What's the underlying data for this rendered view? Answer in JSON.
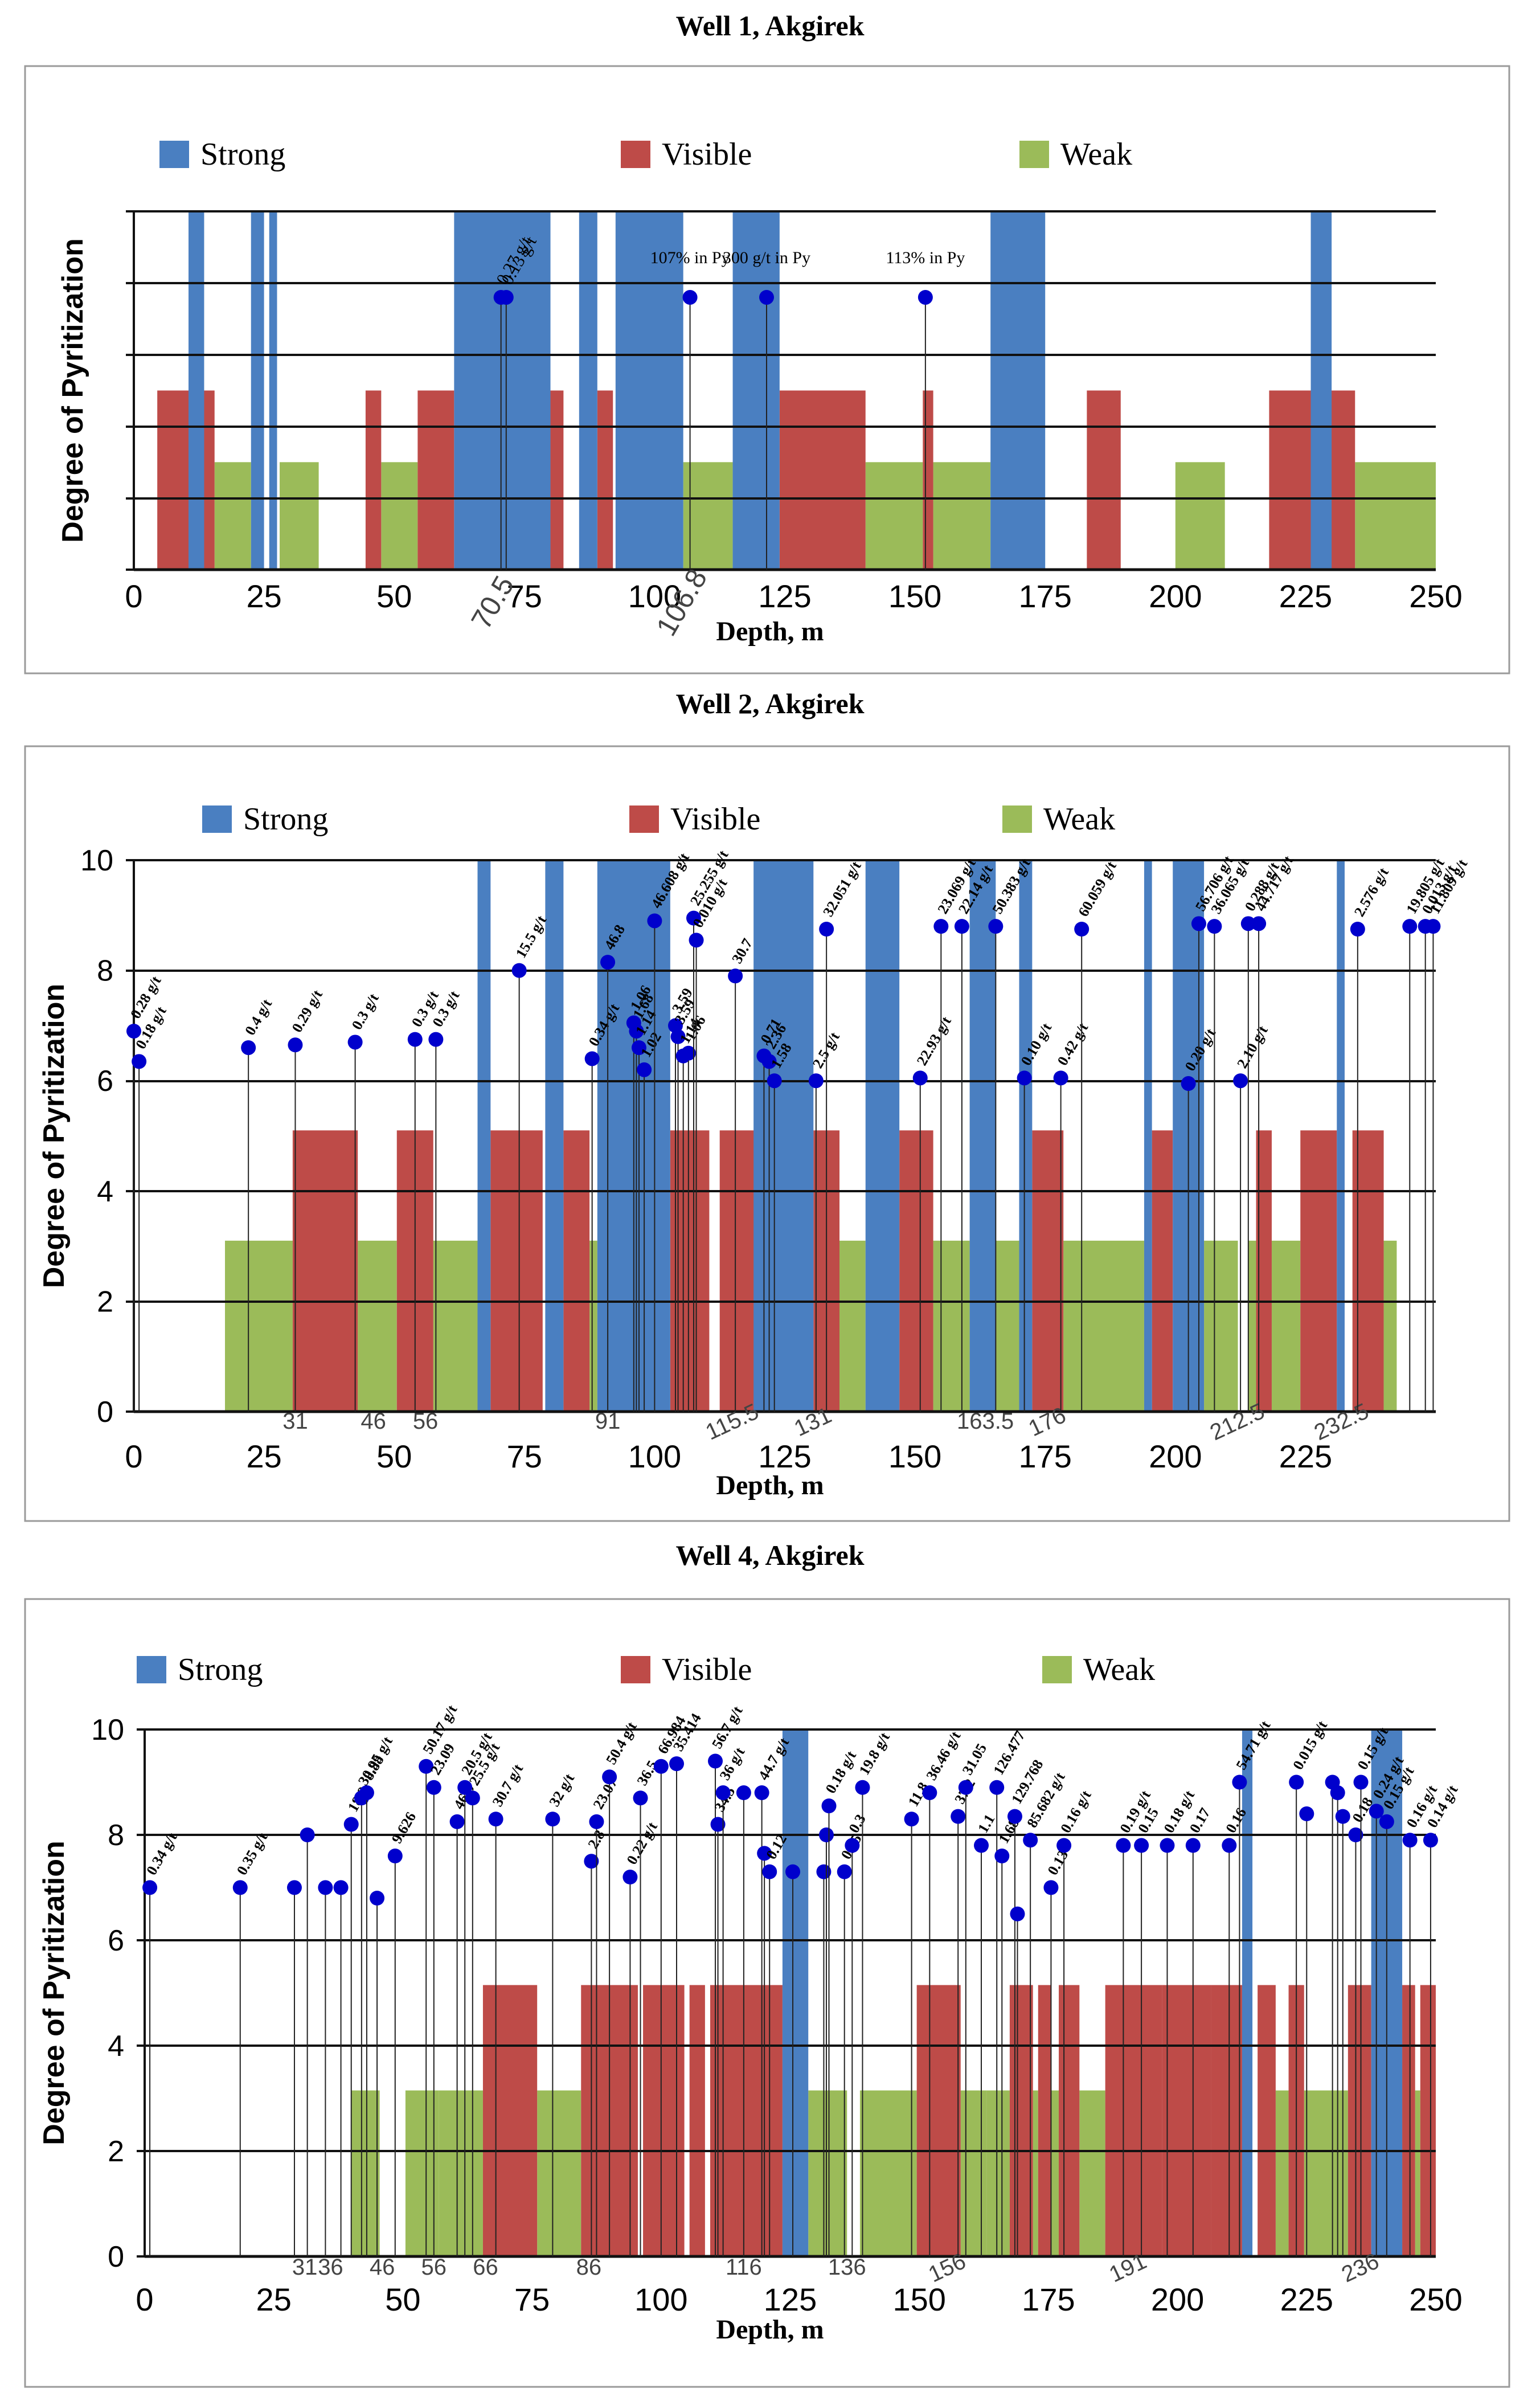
{
  "colors": {
    "strong": "#4a7fc1",
    "visible": "#be4b48",
    "weak": "#9bbb59",
    "marker": "#0000cc",
    "grid": "#000000"
  },
  "legend": {
    "strong": "Strong",
    "visible": "Visible",
    "weak": "Weak"
  },
  "chart_data": [
    {
      "type": "bar",
      "title": "Well 1, Akgirek",
      "xlabel": "Depth, m",
      "ylabel": "Degree of Pyritization",
      "xlim": [
        0,
        250
      ],
      "ylim": [
        0,
        10
      ],
      "xticks": [
        "0",
        "25",
        "50",
        "75",
        "100",
        "125",
        "150",
        "175",
        "200",
        "225",
        "250"
      ],
      "yticks": [],
      "grid": "horizontal",
      "special_ticks": [
        "70.5",
        "106.8"
      ],
      "strong": [
        [
          10.5,
          13.5
        ],
        [
          22.5,
          25
        ],
        [
          26,
          27.5
        ],
        [
          61.5,
          80
        ],
        [
          85.5,
          89
        ],
        [
          92.5,
          105.5
        ],
        [
          115,
          124
        ],
        [
          164.5,
          175
        ],
        [
          226,
          230
        ]
      ],
      "visible": [
        [
          4.5,
          15.5
        ],
        [
          44.5,
          47.5
        ],
        [
          54.5,
          61.5
        ],
        [
          80,
          82.5
        ],
        [
          89,
          92
        ],
        [
          124,
          140.5
        ],
        [
          151.5,
          153.5
        ],
        [
          183,
          189.5
        ],
        [
          218,
          234.5
        ]
      ],
      "weak": [
        [
          15.5,
          22.5
        ],
        [
          28,
          35.5
        ],
        [
          47.5,
          54.5
        ],
        [
          105.5,
          115
        ],
        [
          140.5,
          151.5
        ],
        [
          153.5,
          164.5
        ],
        [
          200,
          209.5
        ],
        [
          234.5,
          250
        ]
      ],
      "levels": {
        "strong": 10,
        "visible": 5,
        "weak": 3
      },
      "samples": [
        {
          "x": 70.5,
          "y": 7.6,
          "label": "0.27 g/t"
        },
        {
          "x": 71.5,
          "y": 7.6,
          "label": "0.13 g/t"
        },
        {
          "x": 106.8,
          "y": 7.6,
          "label": "107% in Py"
        },
        {
          "x": 121.5,
          "y": 7.6,
          "label": "300 g/t in Py"
        },
        {
          "x": 152,
          "y": 7.6,
          "label": "113% in Py"
        }
      ]
    },
    {
      "type": "bar",
      "title": "Well 2, Akgirek",
      "xlabel": "Depth, m",
      "ylabel": "Degree of Pyritization",
      "xlim": [
        0,
        250
      ],
      "ylim": [
        0,
        10
      ],
      "xticks": [
        "0",
        "25",
        "50",
        "75",
        "100",
        "125",
        "150",
        "175",
        "200",
        "225"
      ],
      "yticks": [
        "0",
        "2",
        "4",
        "6",
        "8",
        "10"
      ],
      "grid": "horizontal",
      "special_ticks": [
        "31",
        "46",
        "56",
        "91",
        "115.5",
        "131",
        "163.5",
        "176",
        "212.5",
        "232.5"
      ],
      "strong": [
        [
          66,
          68.5
        ],
        [
          79,
          82.5
        ],
        [
          89,
          103
        ],
        [
          119,
          130.5
        ],
        [
          140.5,
          147
        ],
        [
          160.5,
          165.5
        ],
        [
          170,
          172.5
        ],
        [
          194,
          195.5
        ],
        [
          199.5,
          205.5
        ],
        [
          231,
          232.5
        ]
      ],
      "visible": [
        [
          30.5,
          43
        ],
        [
          50.5,
          57.5
        ],
        [
          68.5,
          78.5
        ],
        [
          82.5,
          87.5
        ],
        [
          103,
          110.5
        ],
        [
          112.5,
          119.5
        ],
        [
          130.5,
          135.5
        ],
        [
          147,
          153.5
        ],
        [
          172.5,
          178.5
        ],
        [
          195.5,
          199.5
        ],
        [
          215.5,
          218.5
        ],
        [
          224,
          231
        ],
        [
          234,
          240
        ]
      ],
      "weak": [
        [
          17.5,
          30.5
        ],
        [
          43,
          50.5
        ],
        [
          57.5,
          66
        ],
        [
          87.5,
          89
        ],
        [
          135.5,
          140.5
        ],
        [
          153.5,
          160.5
        ],
        [
          165.5,
          170
        ],
        [
          178.5,
          194
        ],
        [
          205.5,
          212
        ],
        [
          214,
          215.5
        ],
        [
          218.5,
          224
        ],
        [
          240,
          242.5
        ]
      ],
      "levels": {
        "strong": 10,
        "visible": 5.1,
        "weak": 3.1
      },
      "samples": [
        {
          "x": 0,
          "y": 6.9,
          "label": "0.28 g/t"
        },
        {
          "x": 1,
          "y": 6.35,
          "label": "0.18 g/t"
        },
        {
          "x": 22,
          "y": 6.6,
          "label": "0.4 g/t"
        },
        {
          "x": 31,
          "y": 6.65,
          "label": "0.29 g/t"
        },
        {
          "x": 42.5,
          "y": 6.7,
          "label": "0.3 g/t"
        },
        {
          "x": 54,
          "y": 6.75,
          "label": "0.3 g/t"
        },
        {
          "x": 58,
          "y": 6.75,
          "label": "0.3 g/t"
        },
        {
          "x": 74,
          "y": 8,
          "label": "15.5 g/t"
        },
        {
          "x": 88,
          "y": 6.4,
          "label": "0.34 g/t"
        },
        {
          "x": 91,
          "y": 8.15,
          "label": "46.8"
        },
        {
          "x": 96,
          "y": 7.05,
          "label": "1.06"
        },
        {
          "x": 96.5,
          "y": 6.9,
          "label": "1.68"
        },
        {
          "x": 97,
          "y": 6.6,
          "label": "1.14"
        },
        {
          "x": 98,
          "y": 6.2,
          "label": "1.02"
        },
        {
          "x": 100,
          "y": 8.9,
          "label": "46.608 g/t"
        },
        {
          "x": 104,
          "y": 7,
          "label": "3.59"
        },
        {
          "x": 104.5,
          "y": 6.8,
          "label": "3.59"
        },
        {
          "x": 105.5,
          "y": 6.45,
          "label": "1.14"
        },
        {
          "x": 106.5,
          "y": 6.5,
          "label": "1.06"
        },
        {
          "x": 107.5,
          "y": 8.95,
          "label": "25.255 g/t"
        },
        {
          "x": 108,
          "y": 8.55,
          "label": "0.010 g/t"
        },
        {
          "x": 115.5,
          "y": 7.9,
          "label": "30.7"
        },
        {
          "x": 121,
          "y": 6.45,
          "label": "0.71"
        },
        {
          "x": 122,
          "y": 6.35,
          "label": "2.36"
        },
        {
          "x": 123,
          "y": 6,
          "label": "1.58"
        },
        {
          "x": 131,
          "y": 6,
          "label": "2.5 g/t"
        },
        {
          "x": 133,
          "y": 8.75,
          "label": "32.051 g/t"
        },
        {
          "x": 151,
          "y": 6.05,
          "label": "22.93 g/t"
        },
        {
          "x": 155,
          "y": 8.8,
          "label": "23.069 g/t"
        },
        {
          "x": 159,
          "y": 8.8,
          "label": "22.14 g/t"
        },
        {
          "x": 165.5,
          "y": 8.8,
          "label": "50.383 g/t"
        },
        {
          "x": 171,
          "y": 6.05,
          "label": "0.10 g/t"
        },
        {
          "x": 178,
          "y": 6.05,
          "label": "0.42 g/t"
        },
        {
          "x": 182,
          "y": 8.75,
          "label": "60.059 g/t"
        },
        {
          "x": 202.5,
          "y": 5.95,
          "label": "0.20 g/t"
        },
        {
          "x": 204.5,
          "y": 8.85,
          "label": "56.706 g/t"
        },
        {
          "x": 207.5,
          "y": 8.8,
          "label": "36.065 g/t"
        },
        {
          "x": 212.5,
          "y": 6,
          "label": "2.10 g/t"
        },
        {
          "x": 214,
          "y": 8.85,
          "label": "0.288 g/t"
        },
        {
          "x": 216,
          "y": 8.85,
          "label": "44.717 g/t"
        },
        {
          "x": 235,
          "y": 8.75,
          "label": "2.576 g/t"
        },
        {
          "x": 245,
          "y": 8.8,
          "label": "19.805 g/t"
        },
        {
          "x": 248,
          "y": 8.8,
          "label": "0.013 g/t"
        },
        {
          "x": 249.5,
          "y": 8.8,
          "label": "11.809 g/t"
        }
      ]
    },
    {
      "type": "bar",
      "title": "Well 4, Akgirek",
      "xlabel": "Depth, m",
      "ylabel": "Degree of Pyritization",
      "xlim": [
        0,
        250
      ],
      "ylim": [
        0,
        10
      ],
      "xticks": [
        "0",
        "25",
        "50",
        "75",
        "100",
        "125",
        "150",
        "175",
        "200",
        "225",
        "250"
      ],
      "yticks": [
        "0",
        "2",
        "4",
        "6",
        "8",
        "10"
      ],
      "grid": "horizontal",
      "special_ticks": [
        "31",
        "36",
        "46",
        "56",
        "66",
        "86",
        "116",
        "136",
        "156",
        "191",
        "236"
      ],
      "strong": [
        [
          123.5,
          128.5
        ],
        [
          212.5,
          214.5
        ],
        [
          237.5,
          243.5
        ]
      ],
      "visible": [
        [
          65.5,
          76
        ],
        [
          84.5,
          95.5
        ],
        [
          96.5,
          104.5
        ],
        [
          105.5,
          108.5
        ],
        [
          109.5,
          123.5
        ],
        [
          149.5,
          158
        ],
        [
          167.5,
          172
        ],
        [
          173,
          175.5
        ],
        [
          177,
          181
        ],
        [
          186,
          197
        ],
        [
          197,
          206.5
        ],
        [
          206.5,
          212.5
        ],
        [
          215.5,
          219
        ],
        [
          221.5,
          224.5
        ],
        [
          233,
          237.5
        ],
        [
          243.5,
          246
        ],
        [
          247,
          250
        ]
      ],
      "weak": [
        [
          40,
          45.5
        ],
        [
          50.5,
          57
        ],
        [
          57,
          65.5
        ],
        [
          76,
          84.5
        ],
        [
          128.5,
          136
        ],
        [
          138.5,
          149.5
        ],
        [
          158,
          163
        ],
        [
          163,
          167.5
        ],
        [
          172,
          173
        ],
        [
          175.5,
          177
        ],
        [
          181,
          186
        ],
        [
          219,
          221.5
        ],
        [
          224.5,
          233
        ],
        [
          246,
          247
        ]
      ],
      "levels": {
        "strong": 10,
        "visible": 5.15,
        "weak": 3.15
      },
      "samples": [
        {
          "x": 1,
          "y": 7,
          "label": "0.34 g/t"
        },
        {
          "x": 18.5,
          "y": 7,
          "label": "0.35 g/t"
        },
        {
          "x": 29,
          "y": 7,
          "label": ""
        },
        {
          "x": 31.5,
          "y": 8,
          "label": ""
        },
        {
          "x": 35,
          "y": 7,
          "label": ""
        },
        {
          "x": 38,
          "y": 7,
          "label": ""
        },
        {
          "x": 40,
          "y": 8.2,
          "label": "18.9"
        },
        {
          "x": 42,
          "y": 8.7,
          "label": "30.95 g/t"
        },
        {
          "x": 43,
          "y": 8.8,
          "label": "8.88"
        },
        {
          "x": 45,
          "y": 6.8,
          "label": ""
        },
        {
          "x": 48.5,
          "y": 7.6,
          "label": "9.626"
        },
        {
          "x": 54.5,
          "y": 9.3,
          "label": "50.17 g/t"
        },
        {
          "x": 56,
          "y": 8.9,
          "label": "23.09"
        },
        {
          "x": 60.5,
          "y": 8.25,
          "label": "46.6"
        },
        {
          "x": 62,
          "y": 8.9,
          "label": "20.5 g/t"
        },
        {
          "x": 63.5,
          "y": 8.7,
          "label": "25.5 g/t"
        },
        {
          "x": 68,
          "y": 8.3,
          "label": "30.7 g/t"
        },
        {
          "x": 79,
          "y": 8.3,
          "label": "32 g/t"
        },
        {
          "x": 86.5,
          "y": 7.5,
          "label": "2.8"
        },
        {
          "x": 87.5,
          "y": 8.25,
          "label": "23.07"
        },
        {
          "x": 90,
          "y": 9.1,
          "label": "50.4 g/t"
        },
        {
          "x": 94,
          "y": 7.2,
          "label": "0.22 g/t"
        },
        {
          "x": 96,
          "y": 8.7,
          "label": "36.5"
        },
        {
          "x": 100,
          "y": 9.3,
          "label": "66.984"
        },
        {
          "x": 103,
          "y": 9.35,
          "label": "35.414"
        },
        {
          "x": 110.5,
          "y": 9.4,
          "label": "56.7 g/t"
        },
        {
          "x": 111,
          "y": 8.2,
          "label": "34.5"
        },
        {
          "x": 112,
          "y": 8.8,
          "label": "36 g/t"
        },
        {
          "x": 116,
          "y": 8.8,
          "label": ""
        },
        {
          "x": 119.5,
          "y": 8.8,
          "label": "44.7 g/t"
        },
        {
          "x": 120,
          "y": 7.65,
          "label": ""
        },
        {
          "x": 121,
          "y": 7.3,
          "label": "0.12"
        },
        {
          "x": 125.5,
          "y": 7.3,
          "label": ""
        },
        {
          "x": 131.5,
          "y": 7.3,
          "label": ""
        },
        {
          "x": 132,
          "y": 8,
          "label": ""
        },
        {
          "x": 132.5,
          "y": 8.55,
          "label": "0.18 g/t"
        },
        {
          "x": 135.5,
          "y": 7.3,
          "label": "0.15"
        },
        {
          "x": 137,
          "y": 7.8,
          "label": "0.3"
        },
        {
          "x": 139,
          "y": 8.9,
          "label": "19.8 g/t"
        },
        {
          "x": 148.5,
          "y": 8.3,
          "label": "11.8"
        },
        {
          "x": 152,
          "y": 8.8,
          "label": "36.46 g/t"
        },
        {
          "x": 157.5,
          "y": 8.35,
          "label": "37.2"
        },
        {
          "x": 159,
          "y": 8.9,
          "label": "31.05"
        },
        {
          "x": 162,
          "y": 7.8,
          "label": "1.1"
        },
        {
          "x": 165,
          "y": 8.9,
          "label": "126.477"
        },
        {
          "x": 166,
          "y": 7.6,
          "label": "1.68"
        },
        {
          "x": 168.5,
          "y": 8.35,
          "label": "129.768"
        },
        {
          "x": 169,
          "y": 6.5,
          "label": ""
        },
        {
          "x": 171.5,
          "y": 7.9,
          "label": "85.682 g/t"
        },
        {
          "x": 175.5,
          "y": 7,
          "label": "0.13"
        },
        {
          "x": 178,
          "y": 7.8,
          "label": "0.16 g/t"
        },
        {
          "x": 189.5,
          "y": 7.8,
          "label": "0.19 g/t"
        },
        {
          "x": 193,
          "y": 7.8,
          "label": "0.15"
        },
        {
          "x": 198,
          "y": 7.8,
          "label": "0.18 g/t"
        },
        {
          "x": 203,
          "y": 7.8,
          "label": "0.17"
        },
        {
          "x": 210,
          "y": 7.8,
          "label": "0.16"
        },
        {
          "x": 212,
          "y": 9,
          "label": "54.71 g/t"
        },
        {
          "x": 223,
          "y": 9,
          "label": "0.015 g/t"
        },
        {
          "x": 225,
          "y": 8.4,
          "label": ""
        },
        {
          "x": 230,
          "y": 9,
          "label": ""
        },
        {
          "x": 231,
          "y": 8.8,
          "label": ""
        },
        {
          "x": 232,
          "y": 8.35,
          "label": ""
        },
        {
          "x": 234.5,
          "y": 8,
          "label": "0.18"
        },
        {
          "x": 235.5,
          "y": 9,
          "label": "0.15 g/t"
        },
        {
          "x": 238.5,
          "y": 8.45,
          "label": "0.24 g/t"
        },
        {
          "x": 240.5,
          "y": 8.25,
          "label": "0.15 g/t"
        },
        {
          "x": 245,
          "y": 7.9,
          "label": "0.16 g/t"
        },
        {
          "x": 249,
          "y": 7.9,
          "label": "0.14 g/t"
        }
      ]
    }
  ]
}
